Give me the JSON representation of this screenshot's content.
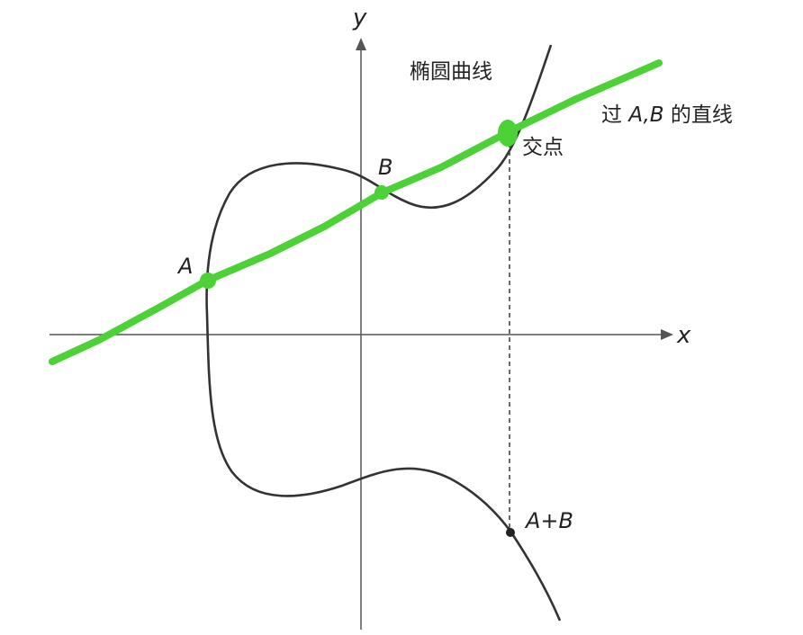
{
  "axes": {
    "x_label": "x",
    "y_label": "y"
  },
  "labels": {
    "curve": "椭圆曲线",
    "line_prefix": "过 ",
    "line_points": "A,B",
    "line_suffix": " 的直线",
    "intersection": "交点",
    "point_a": "A",
    "point_b": "B",
    "sum": "A+B"
  },
  "colors": {
    "curve": "#333333",
    "axis": "#555555",
    "highlight": "#4cd137",
    "text": "#222222"
  }
}
